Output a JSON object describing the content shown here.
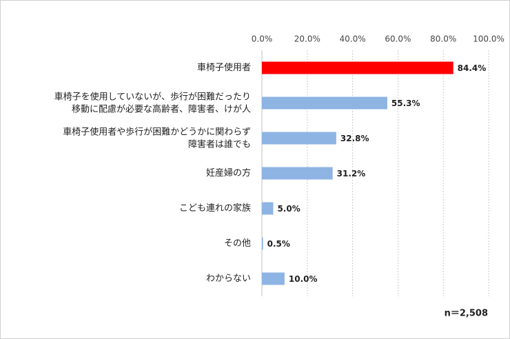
{
  "chart_data": {
    "type": "bar",
    "orientation": "horizontal",
    "categories": [
      "車椅子使用者",
      "車椅子を使用していないが、歩行が困難だったり\n移動に配慮が必要な高齢者、障害者、けが人",
      "車椅子使用者や歩行が困難かどうかに関わらず\n障害者は誰でも",
      "妊産婦の方",
      "こども連れの家族",
      "その他",
      "わからない"
    ],
    "values": [
      84.4,
      55.3,
      32.8,
      31.2,
      5.0,
      0.5,
      10.0
    ],
    "value_labels": [
      "84.4%",
      "55.3%",
      "32.8%",
      "31.2%",
      "5.0%",
      "0.5%",
      "10.0%"
    ],
    "colors": [
      "#ff0000",
      "#8eb4e3",
      "#8eb4e3",
      "#8eb4e3",
      "#8eb4e3",
      "#8eb4e3",
      "#8eb4e3"
    ],
    "xlim": [
      0,
      100
    ],
    "xticks": [
      {
        "value": 0,
        "label": "0.0%"
      },
      {
        "value": 20,
        "label": "20.0%"
      },
      {
        "value": 40,
        "label": "40.0%"
      },
      {
        "value": 60,
        "label": "60.0%"
      },
      {
        "value": 80,
        "label": "80.0%"
      },
      {
        "value": 100,
        "label": "100.0%"
      }
    ],
    "grid": true,
    "annotation": "n＝2,508"
  }
}
